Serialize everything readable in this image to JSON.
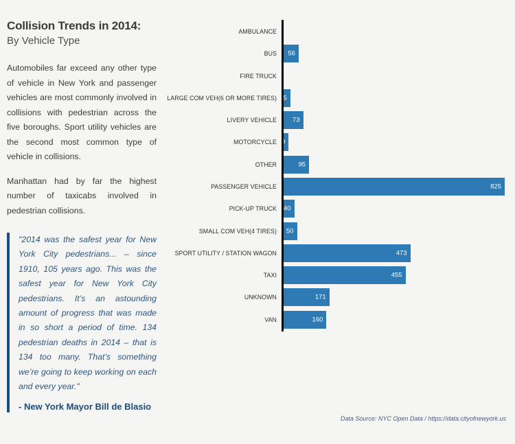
{
  "left_panel": {
    "title": "Collision Trends in 2014:",
    "subtitle": "By Vehicle Type",
    "paragraph1": "Automobiles far exceed any other type of vehicle in New York and passenger vehicles are most commonly involved in collisions with pedestrian across the five boroughs. Sport utility vehicles are the second most common type of vehicle in collisions.",
    "paragraph2": "Manhattan had by far the highest number of taxicabs involved in pedestrian collisions.",
    "quote": "\"2014 was the safest year for New York City pedestrians... – since 1910, 105 years ago. This was the safest year for New York City pedestrians. It’s an astounding amount of progress that was made in so short a period of time. 134 pedestrian deaths in 2014 – that is 134 too many. That’s something we’re going to keep working on each and every year.\"",
    "attribution": "- New York Mayor Bill de Blasio"
  },
  "chart_data": {
    "type": "bar",
    "orientation": "horizontal",
    "categories": [
      "AMBULANCE",
      "BUS",
      "FIRE TRUCK",
      "LARGE COM VEH(6 OR MORE TIRES)",
      "LIVERY VEHICLE",
      "MOTORCYCLE",
      "OTHER",
      "PASSENGER VEHICLE",
      "PICK-UP TRUCK",
      "SMALL COM VEH(4 TIRES)",
      "SPORT UTILITY / STATION WAGON",
      "TAXI",
      "UNKNOWN",
      "VAN"
    ],
    "values": [
      0,
      56,
      0,
      25,
      73,
      19,
      95,
      825,
      40,
      50,
      473,
      455,
      171,
      160
    ],
    "xlim": [
      0,
      855
    ],
    "gridlines": false,
    "value_label_position": "inside-right",
    "bar_color": "#2d7ab4",
    "axis_color": "#000000",
    "value_label_color": "#ffffff"
  },
  "footer": {
    "source": "Data Source: NYC Open Data / https://data.cityofnewyork.us"
  },
  "colors": {
    "background": "#f5f5f3",
    "quote_accent": "#1d4e80",
    "quote_text": "#2e567f",
    "body_text": "#3c3c3c"
  }
}
